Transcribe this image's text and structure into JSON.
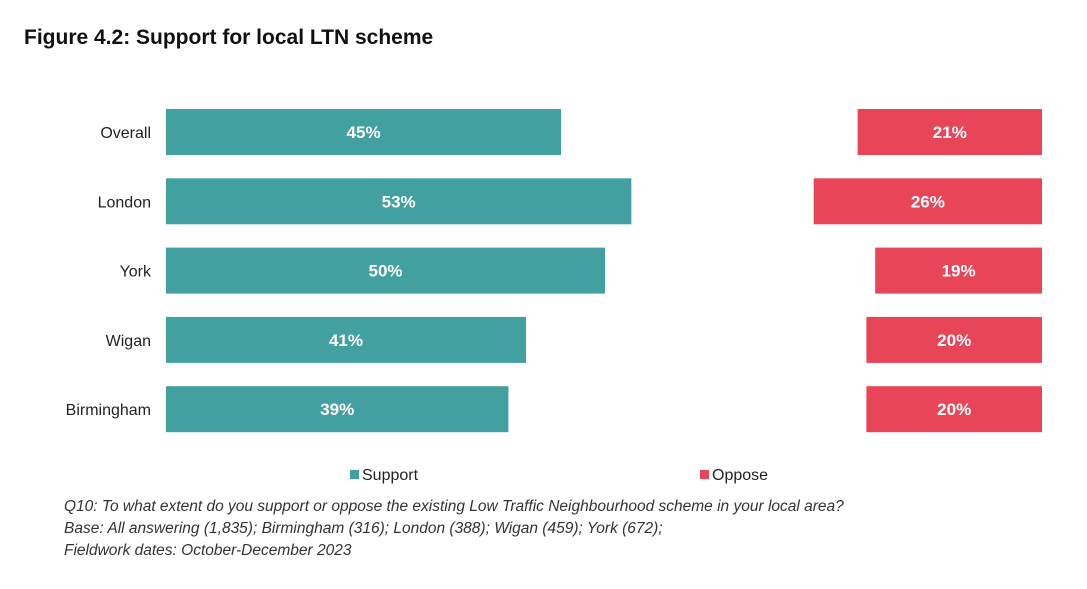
{
  "title": "Figure 4.2: Support for local LTN scheme",
  "chart_data": {
    "type": "bar",
    "orientation": "horizontal",
    "categories": [
      "Overall",
      "London",
      "York",
      "Wigan",
      "Birmingham"
    ],
    "series": [
      {
        "name": "Support",
        "values": [
          45,
          53,
          50,
          41,
          39
        ],
        "labels": [
          "45%",
          "53%",
          "50%",
          "41%",
          "39%"
        ],
        "color": "#42a0a1"
      },
      {
        "name": "Oppose",
        "values": [
          21,
          26,
          19,
          20,
          20
        ],
        "labels": [
          "21%",
          "26%",
          "19%",
          "20%",
          "20%"
        ],
        "color": "#e84558"
      }
    ],
    "unit": "%",
    "legend_position": "bottom",
    "grid": false
  },
  "notes": [
    "Q10: To what extent do you support or oppose the existing Low Traffic Neighbourhood scheme in your local area?",
    "Base: All answering (1,835); Birmingham (316); London (388); Wigan (459); York (672);",
    "Fieldwork dates: October-December 2023"
  ]
}
